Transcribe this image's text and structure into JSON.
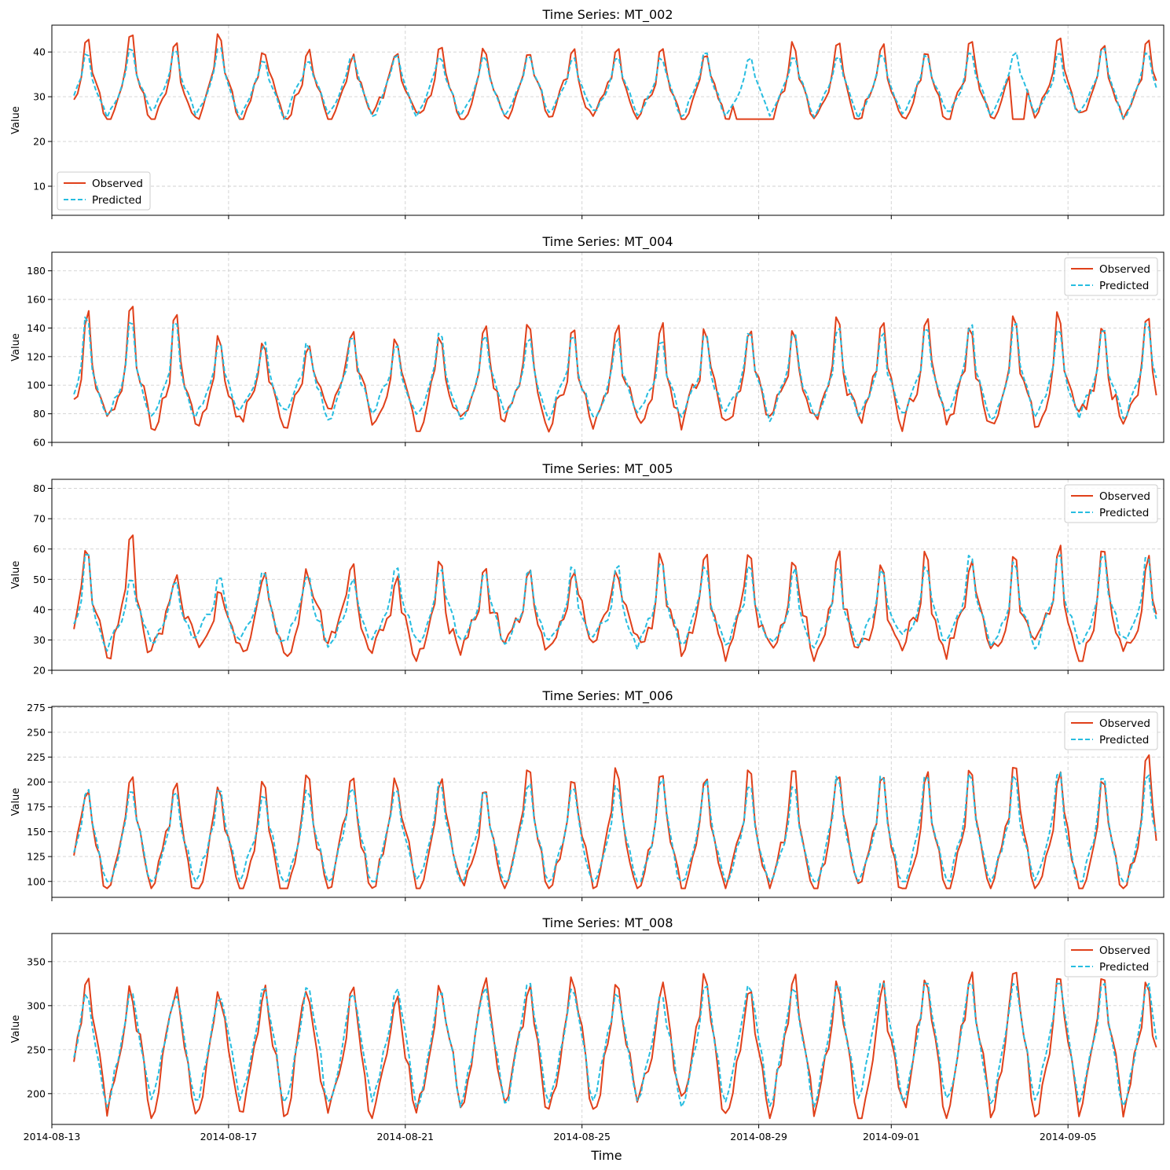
{
  "figure": {
    "xlabel": "Time",
    "ylabel": "Value"
  },
  "chart_data": [
    {
      "type": "line",
      "title": "Time Series: MT_002",
      "ylabel": "Value",
      "ylim": [
        3.5,
        46
      ],
      "yticks": [
        10,
        20,
        30,
        40
      ],
      "legend_position": "lower-left",
      "x_range": [
        "2014-08-13T00:00",
        "2014-09-07T04:00"
      ],
      "x_start": "2014-08-13T12:00",
      "x_end": "2014-09-07T00:00",
      "x_step_hours": 2,
      "xticks": [
        "2014-08-13",
        "2014-08-17",
        "2014-08-21",
        "2014-08-25",
        "2014-08-29",
        "2014-09-01",
        "2014-09-05"
      ],
      "series": [
        {
          "name": "Observed",
          "color": "#e0401a",
          "style": "solid",
          "base": 31,
          "amp": 4,
          "peak": 9,
          "noise": 1.5,
          "min": 25,
          "max": 44,
          "dips": [
            {
              "start": "2014-08-28T12:00",
              "end": "2014-08-29T06:00",
              "value": 12
            },
            {
              "start": "2014-09-03T18:00",
              "end": "2014-09-04T00:00",
              "value": 6
            }
          ]
        },
        {
          "name": "Predicted",
          "color": "#27bde0",
          "style": "dashed",
          "base": 31.5,
          "amp": 3.5,
          "peak": 6.5,
          "noise": 0.8,
          "min": 24,
          "max": 41
        }
      ]
    },
    {
      "type": "line",
      "title": "Time Series: MT_004",
      "ylabel": "Value",
      "ylim": [
        60,
        193
      ],
      "yticks": [
        60,
        80,
        100,
        120,
        140,
        160,
        180
      ],
      "legend_position": "upper-right",
      "x_range": [
        "2014-08-13T00:00",
        "2014-09-07T04:00"
      ],
      "x_start": "2014-08-13T12:00",
      "x_end": "2014-09-07T00:00",
      "x_step_hours": 2,
      "xticks": [
        "2014-08-13",
        "2014-08-17",
        "2014-08-21",
        "2014-08-25",
        "2014-08-29",
        "2014-09-01",
        "2014-09-05"
      ],
      "series": [
        {
          "name": "Observed",
          "color": "#e0401a",
          "style": "solid",
          "base": 96,
          "amp": 14,
          "peak": 45,
          "noise": 7,
          "min": 65,
          "max": 188
        },
        {
          "name": "Predicted",
          "color": "#27bde0",
          "style": "dashed",
          "base": 98,
          "amp": 12,
          "peak": 38,
          "noise": 4,
          "min": 70,
          "max": 155
        }
      ]
    },
    {
      "type": "line",
      "title": "Time Series: MT_005",
      "ylabel": "Value",
      "ylim": [
        20,
        83
      ],
      "yticks": [
        20,
        30,
        40,
        50,
        60,
        70,
        80
      ],
      "legend_position": "upper-right",
      "x_range": [
        "2014-08-13T00:00",
        "2014-09-07T04:00"
      ],
      "x_start": "2014-08-13T12:00",
      "x_end": "2014-09-07T00:00",
      "x_step_hours": 2,
      "xticks": [
        "2014-08-13",
        "2014-08-17",
        "2014-08-21",
        "2014-08-25",
        "2014-08-29",
        "2014-09-01",
        "2014-09-05"
      ],
      "series": [
        {
          "name": "Observed",
          "color": "#e0401a",
          "style": "solid",
          "base": 36,
          "amp": 6,
          "peak": 20,
          "noise": 4,
          "min": 23,
          "max": 81
        },
        {
          "name": "Predicted",
          "color": "#27bde0",
          "style": "dashed",
          "base": 37,
          "amp": 5,
          "peak": 17,
          "noise": 2,
          "min": 25,
          "max": 64
        }
      ]
    },
    {
      "type": "line",
      "title": "Time Series: MT_006",
      "ylabel": "Value",
      "ylim": [
        84,
        276
      ],
      "yticks": [
        100,
        125,
        150,
        175,
        200,
        225,
        250,
        275
      ],
      "legend_position": "upper-right",
      "x_range": [
        "2014-08-13T00:00",
        "2014-09-07T04:00"
      ],
      "x_start": "2014-08-13T12:00",
      "x_end": "2014-09-07T00:00",
      "x_step_hours": 2,
      "xticks": [
        "2014-08-13",
        "2014-08-17",
        "2014-08-21",
        "2014-08-25",
        "2014-08-29",
        "2014-09-01",
        "2014-09-05"
      ],
      "series": [
        {
          "name": "Observed",
          "color": "#e0401a",
          "style": "solid",
          "base": 135,
          "amp": 30,
          "peak": 60,
          "noise": 10,
          "min": 93,
          "max": 267
        },
        {
          "name": "Predicted",
          "color": "#27bde0",
          "style": "dashed",
          "base": 137,
          "amp": 28,
          "peak": 50,
          "noise": 6,
          "min": 100,
          "max": 225
        }
      ]
    },
    {
      "type": "line",
      "title": "Time Series: MT_008",
      "ylabel": "Value",
      "ylim": [
        165,
        382
      ],
      "yticks": [
        200,
        250,
        300,
        350
      ],
      "legend_position": "upper-right",
      "x_range": [
        "2014-08-13T00:00",
        "2014-09-07T04:00"
      ],
      "x_start": "2014-08-13T12:00",
      "x_end": "2014-09-07T00:00",
      "x_step_hours": 2,
      "xticks": [
        "2014-08-13",
        "2014-08-17",
        "2014-08-21",
        "2014-08-25",
        "2014-08-29",
        "2014-09-01",
        "2014-09-05"
      ],
      "series": [
        {
          "name": "Observed",
          "color": "#e0401a",
          "style": "solid",
          "base": 248,
          "amp": 45,
          "peak": 45,
          "noise": 15,
          "min": 172,
          "max": 373
        },
        {
          "name": "Predicted",
          "color": "#27bde0",
          "style": "dashed",
          "base": 252,
          "amp": 42,
          "peak": 35,
          "noise": 8,
          "min": 185,
          "max": 325
        }
      ]
    }
  ]
}
